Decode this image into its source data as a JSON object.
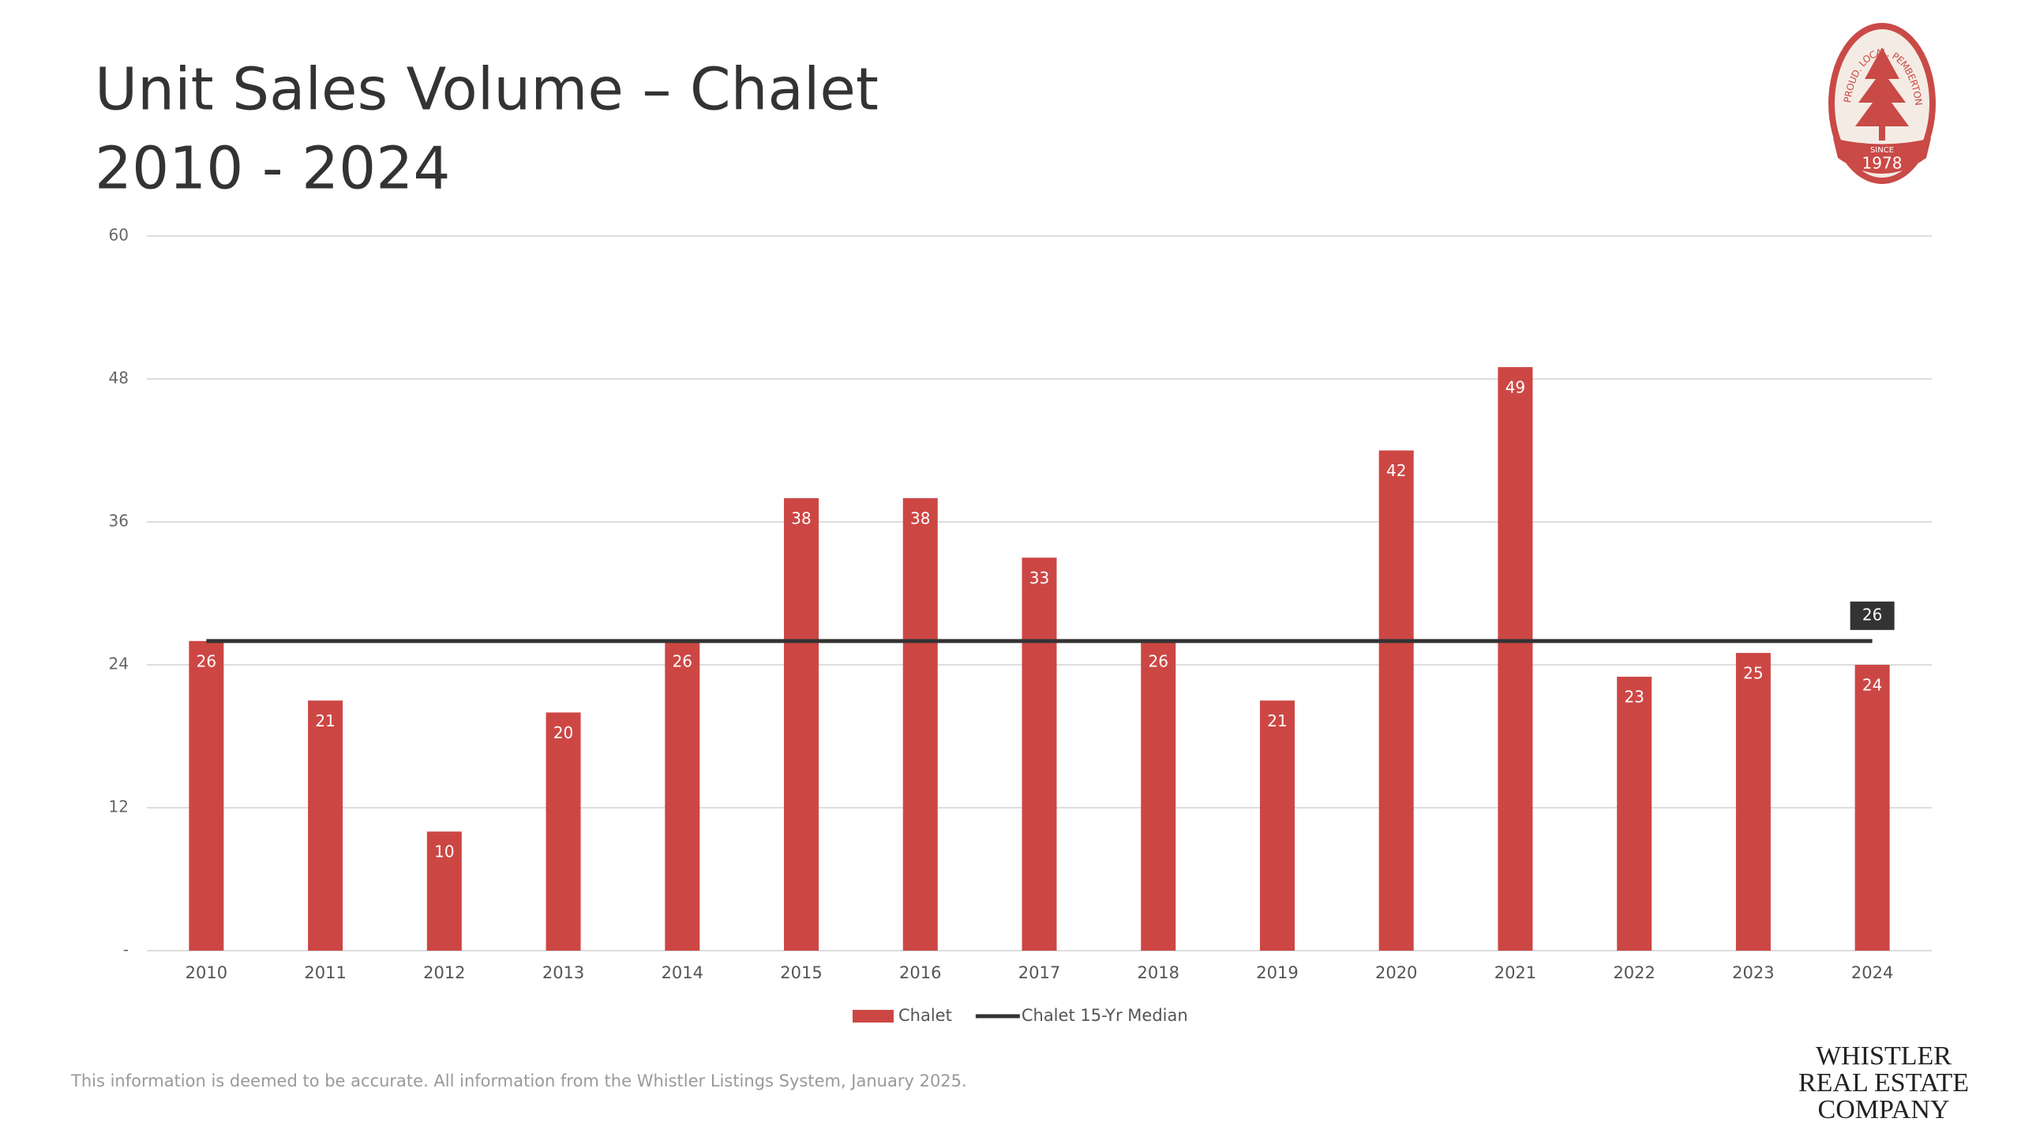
{
  "chart_data": {
    "type": "bar",
    "title": "Unit Sales Volume – Chalet",
    "subtitle": "2010 - 2024",
    "categories": [
      "2010",
      "2011",
      "2012",
      "2013",
      "2014",
      "2015",
      "2016",
      "2017",
      "2018",
      "2019",
      "2020",
      "2021",
      "2022",
      "2023",
      "2024"
    ],
    "series": [
      {
        "name": "Chalet",
        "type": "bar",
        "color": "#cc4744",
        "values": [
          26,
          21,
          10,
          20,
          26,
          38,
          38,
          33,
          26,
          21,
          42,
          49,
          23,
          25,
          24
        ]
      },
      {
        "name": "Chalet 15-Yr Median",
        "type": "line",
        "color": "#333333",
        "values": [
          26,
          26,
          26,
          26,
          26,
          26,
          26,
          26,
          26,
          26,
          26,
          26,
          26,
          26,
          26
        ]
      }
    ],
    "ylim": [
      0,
      60
    ],
    "yticks": [
      {
        "value": 0,
        "label": "-"
      },
      12,
      24,
      36,
      48,
      60
    ],
    "grid": true,
    "legend": "bottom",
    "footnote": "This information is deemed to be accurate. All information from the Whistler Listings System, January 2025."
  },
  "logo": {
    "ring_text": "PROUD. LOCAL. PEMBERTON",
    "since": "SINCE",
    "year": "1978"
  },
  "company": {
    "line1": "WHISTLER",
    "line2": "REAL ESTATE",
    "line3": "COMPANY"
  }
}
